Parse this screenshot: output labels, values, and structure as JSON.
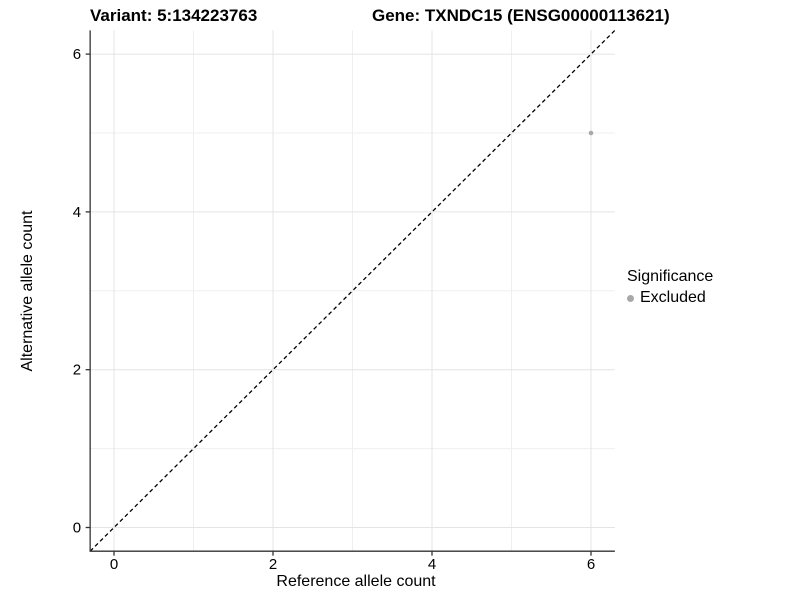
{
  "titles": {
    "variant": "Variant: 5:134223763",
    "gene": "Gene: TXNDC15 (ENSG00000113621)"
  },
  "chart_data": {
    "type": "scatter",
    "title": "Variant: 5:134223763  /  Gene: TXNDC15 (ENSG00000113621)",
    "xlabel": "Reference allele count",
    "ylabel": "Alternative allele count",
    "xlim": [
      -0.3,
      6.3
    ],
    "ylim": [
      -0.3,
      6.3
    ],
    "xticks": [
      0,
      2,
      4,
      6
    ],
    "yticks": [
      0,
      2,
      4,
      6
    ],
    "xticks_minor": [
      1,
      3,
      5
    ],
    "yticks_minor": [
      1,
      3,
      5
    ],
    "grid": "on",
    "series": [
      {
        "name": "Excluded",
        "color": "#a8a8a8",
        "points": [
          {
            "x": 6,
            "y": 5
          }
        ]
      }
    ],
    "reference_line": {
      "kind": "identity",
      "equation": "y = x",
      "style": "dashed",
      "color": "#000000"
    },
    "legend": {
      "title": "Significance",
      "position": "right",
      "items": [
        {
          "label": "Excluded",
          "color": "#a8a8a8",
          "marker": "circle"
        }
      ]
    },
    "colors": {
      "grid_major": "#e4e4e4",
      "grid_minor": "#efefef",
      "axis_line": "#333333",
      "tick_text": "#000000",
      "background": "#ffffff"
    }
  }
}
